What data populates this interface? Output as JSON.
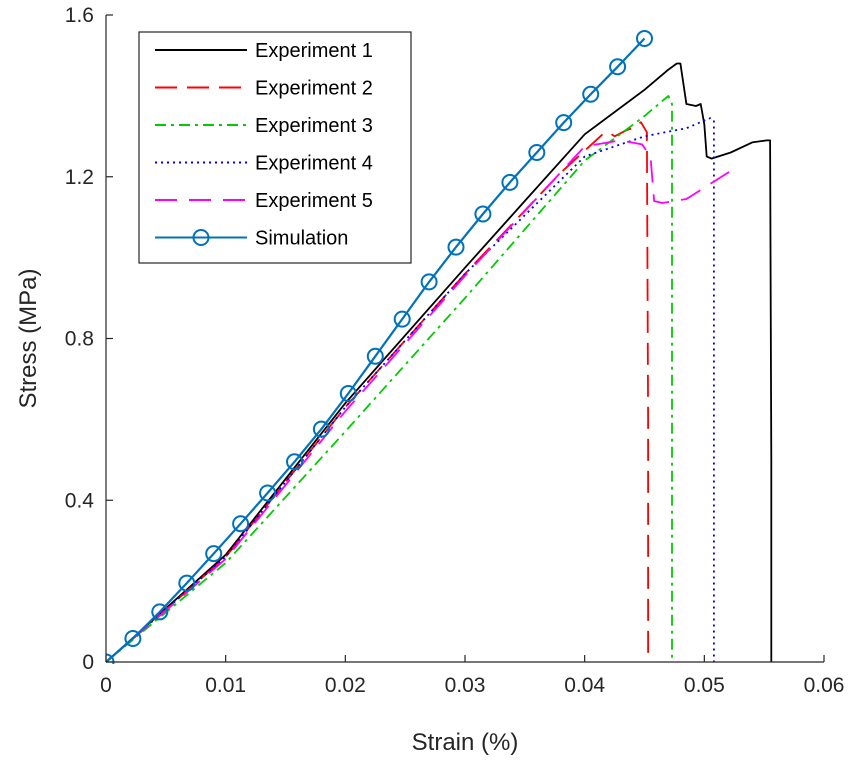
{
  "chart_data": {
    "type": "line",
    "xlabel": "Strain (%)",
    "ylabel": "Stress (MPa)",
    "xlim": [
      0,
      0.06
    ],
    "ylim": [
      0,
      1.6
    ],
    "xticks": [
      0,
      0.01,
      0.02,
      0.03,
      0.04,
      0.05,
      0.06
    ],
    "xtick_labels": [
      "0",
      "0.01",
      "0.02",
      "0.03",
      "0.04",
      "0.05",
      "0.06"
    ],
    "yticks": [
      0,
      0.4,
      0.8,
      1.2,
      1.6
    ],
    "ytick_labels": [
      "0",
      "0.4",
      "0.8",
      "1.2",
      "1.6"
    ],
    "grid": false,
    "legend_position": "top-left",
    "series": [
      {
        "name": "Experiment 1",
        "color": "#000000",
        "style": "solid",
        "x": [
          0,
          0.01,
          0.02,
          0.03,
          0.035,
          0.04,
          0.045,
          0.047,
          0.0477,
          0.048,
          0.0485,
          0.0493,
          0.0497,
          0.05,
          0.0502,
          0.0506,
          0.0522,
          0.054,
          0.0552,
          0.0555,
          0.0556,
          0.0556
        ],
        "y": [
          0,
          0.265,
          0.64,
          0.975,
          1.14,
          1.305,
          1.415,
          1.465,
          1.48,
          1.48,
          1.38,
          1.375,
          1.38,
          1.33,
          1.25,
          1.245,
          1.26,
          1.285,
          1.29,
          1.29,
          0.5,
          0.0
        ]
      },
      {
        "name": "Experiment 2",
        "color": "#ff0000",
        "style": "dashed",
        "x": [
          0,
          0.01,
          0.02,
          0.03,
          0.038,
          0.0415,
          0.042,
          0.0425,
          0.0435,
          0.044,
          0.0447,
          0.0452,
          0.0453,
          0.0453
        ],
        "y": [
          0,
          0.26,
          0.63,
          0.96,
          1.21,
          1.305,
          1.31,
          1.3,
          1.315,
          1.32,
          1.335,
          1.31,
          0.6,
          0.0
        ]
      },
      {
        "name": "Experiment 3",
        "color": "#00cc00",
        "style": "dashdot",
        "x": [
          0,
          0.01,
          0.02,
          0.03,
          0.04,
          0.045,
          0.047,
          0.0473,
          0.0473
        ],
        "y": [
          0,
          0.245,
          0.57,
          0.9,
          1.24,
          1.35,
          1.4,
          1.38,
          0.0
        ]
      },
      {
        "name": "Experiment 4",
        "color": "#0000ee",
        "style": "dotted",
        "x": [
          0,
          0.01,
          0.02,
          0.03,
          0.04,
          0.045,
          0.0485,
          0.0505,
          0.0508,
          0.0508
        ],
        "y": [
          0,
          0.26,
          0.63,
          0.96,
          1.25,
          1.3,
          1.32,
          1.345,
          1.34,
          0.0
        ]
      },
      {
        "name": "Experiment 5",
        "color": "#ff00ff",
        "style": "longdash",
        "x": [
          0,
          0.01,
          0.02,
          0.03,
          0.04,
          0.043,
          0.0448,
          0.0455,
          0.0458,
          0.0465,
          0.0485,
          0.0525
        ],
        "y": [
          0,
          0.255,
          0.62,
          0.955,
          1.275,
          1.29,
          1.28,
          1.25,
          1.14,
          1.135,
          1.145,
          1.22
        ]
      },
      {
        "name": "Simulation",
        "color": "#0072bd",
        "style": "solid",
        "marker": "circle",
        "x": [
          0,
          0.00225,
          0.0045,
          0.00675,
          0.009,
          0.01125,
          0.0135,
          0.01575,
          0.018,
          0.02025,
          0.0225,
          0.02475,
          0.027,
          0.02925,
          0.0315,
          0.03375,
          0.036,
          0.03825,
          0.0405,
          0.04275,
          0.045
        ],
        "y": [
          0,
          0.058,
          0.124,
          0.195,
          0.268,
          0.342,
          0.418,
          0.495,
          0.576,
          0.664,
          0.756,
          0.848,
          0.94,
          1.026,
          1.108,
          1.186,
          1.26,
          1.334,
          1.404,
          1.472,
          1.542
        ]
      }
    ]
  }
}
